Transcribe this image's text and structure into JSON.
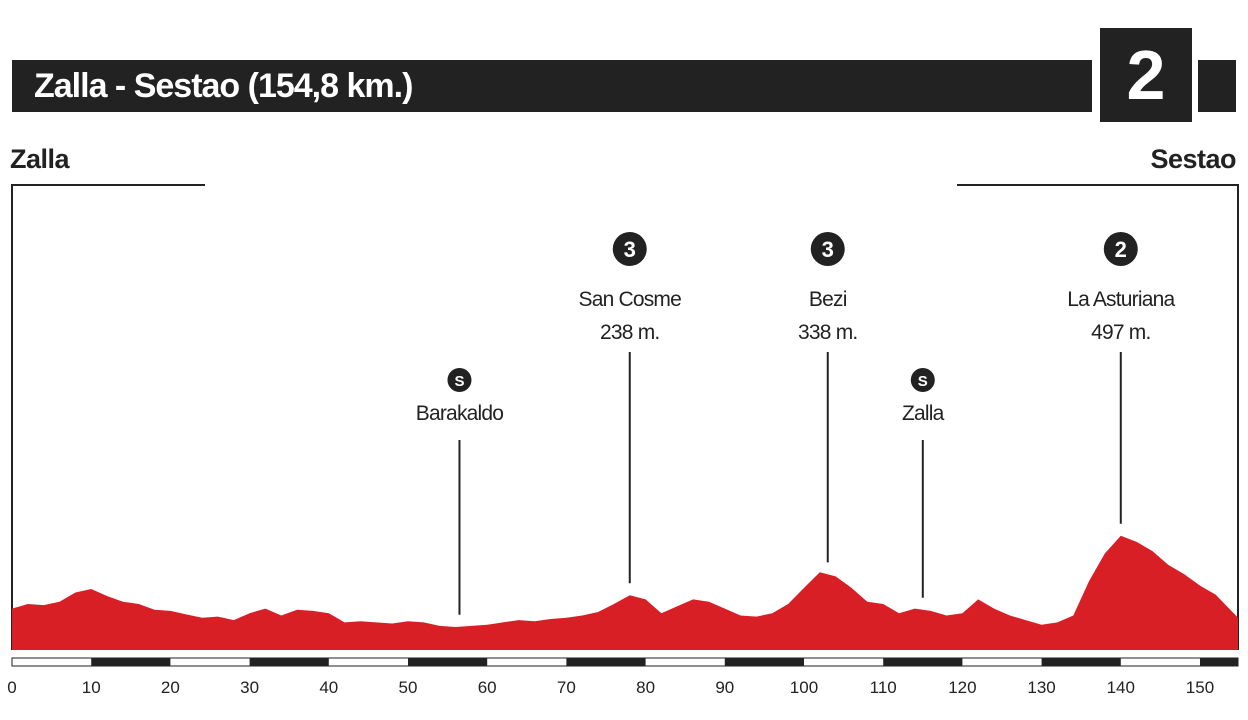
{
  "header": {
    "title": "Zalla - Sestao (154,8 km.)",
    "stage_number": "2",
    "start": "Zalla",
    "finish": "Sestao"
  },
  "colors": {
    "profile": "#d91f26",
    "dark": "#222222"
  },
  "chart_data": {
    "type": "area",
    "xlabel": "",
    "ylabel": "",
    "xlim": [
      0,
      154.8
    ],
    "x_ticks": [
      0,
      10,
      20,
      30,
      40,
      50,
      60,
      70,
      80,
      90,
      100,
      110,
      120,
      130,
      140,
      150
    ],
    "markers": [
      {
        "type": "sprint",
        "badge": "S",
        "name": "Barakaldo",
        "alt": "",
        "km": 56.5
      },
      {
        "type": "climb",
        "badge": "3",
        "name": "San Cosme",
        "alt": "238 m.",
        "km": 78
      },
      {
        "type": "climb",
        "badge": "3",
        "name": "Bezi",
        "alt": "338 m.",
        "km": 103
      },
      {
        "type": "sprint",
        "badge": "S",
        "name": "Zalla",
        "alt": "",
        "km": 115
      },
      {
        "type": "climb",
        "badge": "2",
        "name": "La Asturiana",
        "alt": "497 m.",
        "km": 140
      }
    ],
    "profile": {
      "km": [
        0,
        2,
        4,
        6,
        8,
        10,
        12,
        14,
        16,
        18,
        20,
        22,
        24,
        26,
        28,
        30,
        32,
        34,
        36,
        38,
        40,
        42,
        44,
        46,
        48,
        50,
        52,
        54,
        56,
        58,
        60,
        62,
        64,
        66,
        68,
        70,
        72,
        74,
        76,
        78,
        80,
        82,
        84,
        86,
        88,
        90,
        92,
        94,
        96,
        98,
        100,
        102,
        104,
        106,
        108,
        110,
        112,
        114,
        116,
        118,
        120,
        122,
        124,
        126,
        128,
        130,
        132,
        134,
        136,
        138,
        140,
        142,
        144,
        146,
        148,
        150,
        152,
        154.8
      ],
      "alt": [
        180,
        200,
        195,
        210,
        250,
        265,
        235,
        210,
        200,
        175,
        170,
        155,
        140,
        145,
        130,
        160,
        180,
        150,
        175,
        170,
        160,
        120,
        125,
        120,
        115,
        125,
        120,
        105,
        100,
        105,
        110,
        120,
        130,
        125,
        135,
        140,
        150,
        165,
        200,
        238,
        220,
        160,
        190,
        220,
        210,
        180,
        150,
        145,
        160,
        200,
        270,
        338,
        320,
        270,
        210,
        200,
        160,
        180,
        170,
        150,
        160,
        220,
        180,
        150,
        130,
        110,
        120,
        150,
        300,
        420,
        497,
        470,
        430,
        370,
        330,
        280,
        240,
        140
      ]
    }
  }
}
